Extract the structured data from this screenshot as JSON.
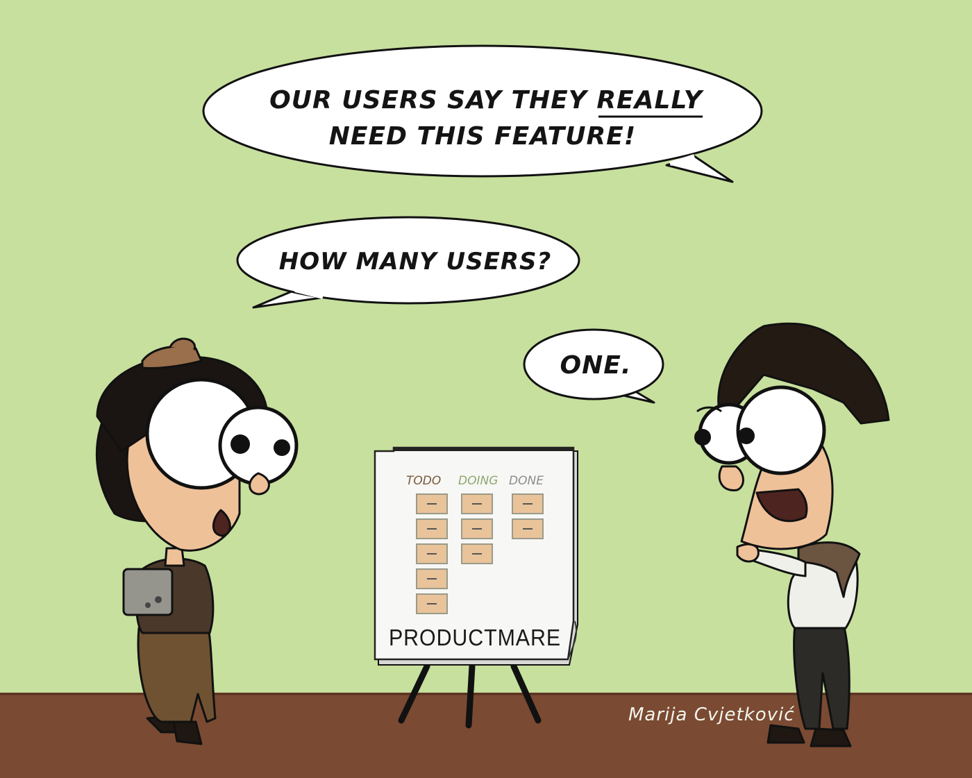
{
  "bubbles": {
    "top_line1_a": "OUR USERS SAY THEY ",
    "top_line1_emph": "REALLY",
    "top_line2": "NEED THIS FEATURE!",
    "middle": "HOW MANY USERS?",
    "reply": "ONE."
  },
  "board": {
    "title": "PRODUCTMARE",
    "columns": [
      "TODO",
      "DOING",
      "DONE"
    ],
    "column_colors": [
      "#7a5a3a",
      "#8fa870",
      "#8b8f8c"
    ],
    "card_counts": [
      5,
      3,
      2
    ],
    "card_color": "#e9c39a"
  },
  "signature": "Marija Cvjetković",
  "colors": {
    "background": "#c7e09e",
    "floor": "#7a4a32",
    "bubble": "#ffffff",
    "outline": "#111111"
  }
}
